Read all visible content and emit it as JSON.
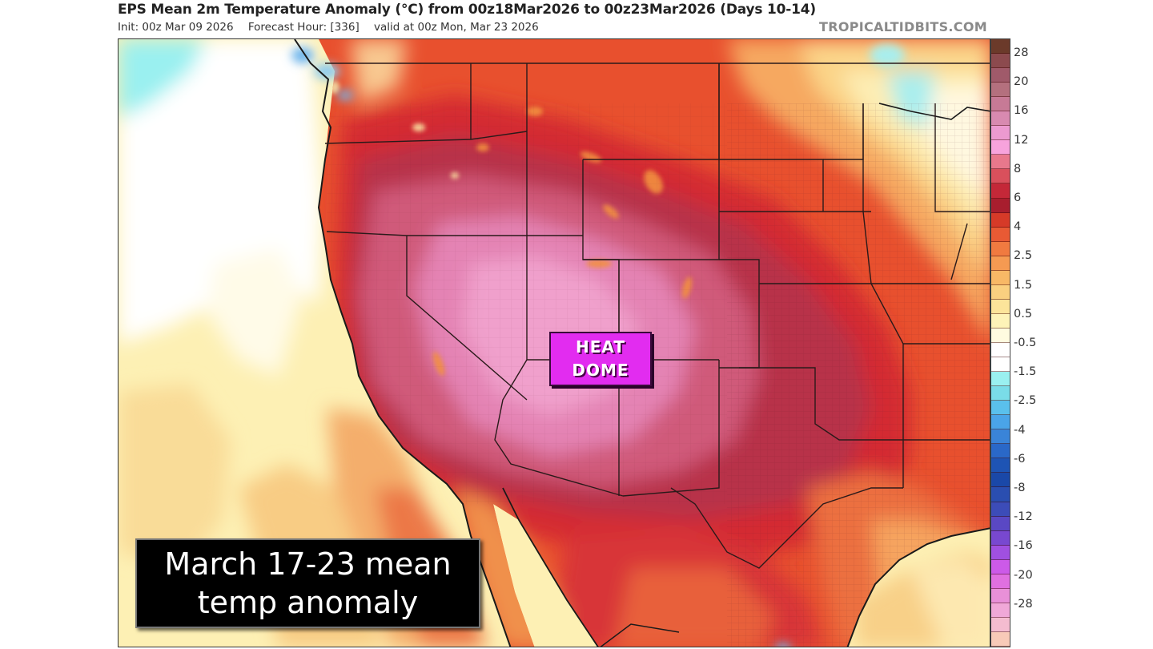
{
  "header": {
    "title": "EPS Mean 2m Temperature Anomaly (°C) from 00z18Mar2026 to 00z23Mar2026 (Days 10-14)",
    "init": "Init: 00z Mar 09 2026",
    "forecast_hour": "Forecast Hour: [336]",
    "valid": "valid at 00z Mon, Mar 23 2026",
    "brand": "TROPICALTIDBITS.COM"
  },
  "colorbar": {
    "unit": "°C",
    "labels": [
      "28",
      "20",
      "16",
      "12",
      "8",
      "6",
      "4",
      "2.5",
      "1.5",
      "0.5",
      "-0.5",
      "-1.5",
      "-2.5",
      "-4",
      "-6",
      "-8",
      "-12",
      "-16",
      "-20",
      "-28"
    ],
    "colors": [
      "#6b3a2a",
      "#8c4a4e",
      "#a05a6a",
      "#b4707e",
      "#c77a96",
      "#d88ab0",
      "#ec9ad0",
      "#f7a3dc",
      "#e8788c",
      "#d9505c",
      "#c42838",
      "#a81e2e",
      "#d63a28",
      "#e85a34",
      "#f07a40",
      "#f59a52",
      "#f8b866",
      "#fad080",
      "#fce49a",
      "#fdf3b8",
      "#fffbe0",
      "#ffffff",
      "#ffffff",
      "#9af0f0",
      "#7adce8",
      "#5ac0ec",
      "#4aa4e8",
      "#3a84d8",
      "#2a68c8",
      "#1e54b4",
      "#1a48a8",
      "#2a4eb0",
      "#3c4cb8",
      "#5a48c4",
      "#7848d0",
      "#a050e0",
      "#cc5ae8",
      "#e070e0",
      "#e890d8",
      "#f0a8d8",
      "#f4bcd0",
      "#f8cab8"
    ]
  },
  "annotations": {
    "heat_dome": [
      "HEAT",
      "DOME"
    ],
    "caption": [
      "March 17-23 mean",
      "temp anomaly"
    ]
  },
  "map": {
    "region": "Western and Central United States",
    "colors": {
      "ocean_cool": "#fffbe8",
      "ocean_light": "#fdf0b4",
      "ocean_mid": "#f8d890",
      "ocean_warm": "#f2a662",
      "ocean_hot": "#e8663c",
      "cyan": "#9af0f0",
      "blue": "#6cb4ec",
      "warm4": "#e8502e",
      "warm6": "#d42c30",
      "warm8": "#b83248",
      "pink12": "#d05a7a",
      "pink16": "#e483b4",
      "heat_dome_bg": "#e22cf0"
    }
  }
}
